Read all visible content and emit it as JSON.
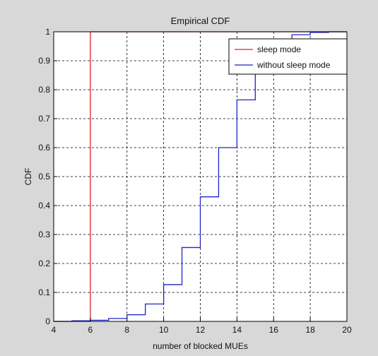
{
  "chart_data": {
    "type": "line",
    "title": "Empirical CDF",
    "xlabel": "number of blocked MUEs",
    "ylabel": "CDF",
    "xlim": [
      4,
      20
    ],
    "ylim": [
      0,
      1
    ],
    "grid": true,
    "legend_position": "top-right",
    "x_ticks": [
      "4",
      "6",
      "8",
      "10",
      "12",
      "14",
      "16",
      "18",
      "20"
    ],
    "y_ticks": [
      "0",
      "0.1",
      "0.2",
      "0.3",
      "0.4",
      "0.5",
      "0.6",
      "0.7",
      "0.8",
      "0.9",
      "1"
    ],
    "series": [
      {
        "name": "sleep mode",
        "color": "#e0202a",
        "step": true,
        "x": [
          4,
          5,
          6,
          6,
          20
        ],
        "y": [
          0,
          0.002,
          0.005,
          1.0,
          1.0
        ]
      },
      {
        "name": "without sleep mode",
        "color": "#2222cc",
        "step": true,
        "x": [
          4,
          5,
          6,
          7,
          8,
          9,
          10,
          11,
          12,
          13,
          14,
          15,
          16,
          17,
          18,
          19
        ],
        "y": [
          0,
          0.002,
          0.004,
          0.01,
          0.023,
          0.06,
          0.127,
          0.255,
          0.43,
          0.6,
          0.765,
          0.895,
          0.96,
          0.99,
          0.998,
          1.0
        ]
      }
    ]
  }
}
